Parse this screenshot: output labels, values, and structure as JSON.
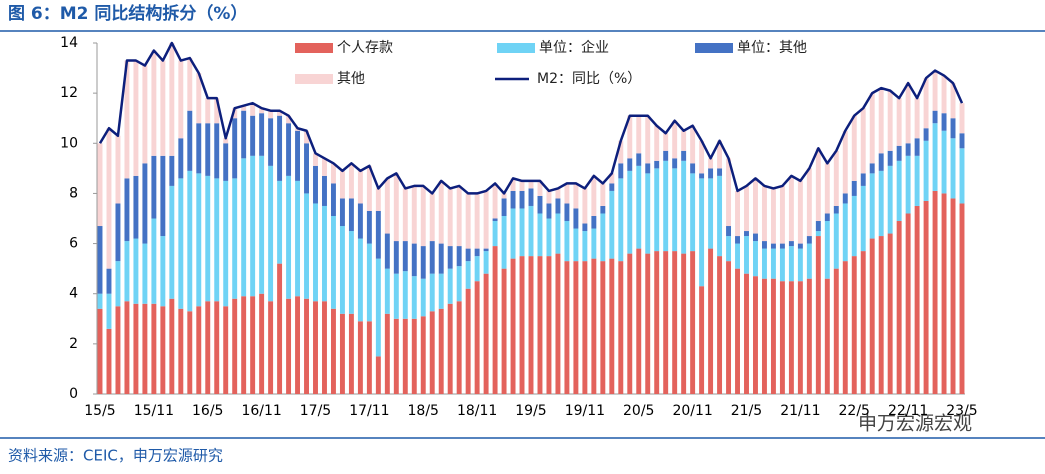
{
  "title": "图 6：M2 同比结构拆分（%）",
  "source": "资料来源：CEIC，申万宏源研究",
  "watermark": "申万宏源宏观",
  "chart_data": {
    "type": "stacked-bar-line",
    "categories": [
      "15/5",
      null,
      null,
      null,
      null,
      null,
      "15/11",
      null,
      null,
      null,
      null,
      null,
      "16/5",
      null,
      null,
      null,
      null,
      null,
      "16/11",
      null,
      null,
      null,
      null,
      null,
      "17/5",
      null,
      null,
      null,
      null,
      null,
      "17/11",
      null,
      null,
      null,
      null,
      null,
      "18/5",
      null,
      null,
      null,
      null,
      null,
      "18/11",
      null,
      null,
      null,
      null,
      null,
      "19/5",
      null,
      null,
      null,
      null,
      null,
      "19/11",
      null,
      null,
      null,
      null,
      null,
      "20/5",
      null,
      null,
      null,
      null,
      null,
      "20/11",
      null,
      null,
      null,
      null,
      null,
      "21/5",
      null,
      null,
      null,
      null,
      null,
      "21/11",
      null,
      null,
      null,
      null,
      null,
      "22/5",
      null,
      null,
      null,
      null,
      null,
      "22/11",
      null,
      null,
      null,
      null,
      null,
      "23/5"
    ],
    "ylim": [
      0,
      14
    ],
    "yticks": [
      0,
      2,
      4,
      6,
      8,
      10,
      12,
      14
    ],
    "grid": false,
    "legend": "top",
    "series": [
      {
        "name": "个人存款",
        "color": "#e3625c",
        "kind": "bar",
        "values": [
          3.4,
          2.6,
          3.5,
          3.7,
          3.6,
          3.6,
          3.6,
          3.5,
          3.8,
          3.4,
          3.3,
          3.5,
          3.7,
          3.7,
          3.5,
          3.8,
          3.9,
          3.9,
          4.0,
          3.7,
          5.2,
          3.8,
          3.9,
          3.8,
          3.7,
          3.7,
          3.4,
          3.2,
          3.2,
          2.9,
          2.9,
          1.5,
          3.2,
          3.0,
          3.0,
          3.0,
          3.1,
          3.3,
          3.4,
          3.6,
          3.7,
          4.2,
          4.5,
          4.8,
          5.9,
          5.0,
          5.4,
          5.5,
          5.5,
          5.5,
          5.5,
          5.6,
          5.3,
          5.3,
          5.3,
          5.4,
          5.3,
          5.4,
          5.3,
          5.6,
          5.8,
          5.6,
          5.7,
          5.7,
          5.7,
          5.6,
          5.7,
          4.3,
          5.8,
          5.5,
          5.3,
          5.0,
          4.8,
          4.7,
          4.6,
          4.6,
          4.5,
          4.5,
          4.5,
          4.6,
          6.3,
          4.6,
          5.0,
          5.3,
          5.5,
          5.7,
          6.2,
          6.3,
          6.4,
          6.9,
          7.2,
          7.5,
          7.7,
          8.1,
          8.0,
          7.8,
          7.6
        ]
      },
      {
        "name": "单位：企业",
        "color": "#6fd3f5",
        "kind": "bar",
        "values": [
          0.6,
          1.4,
          1.8,
          2.4,
          2.6,
          2.4,
          3.4,
          2.8,
          4.5,
          5.2,
          5.6,
          5.3,
          5.0,
          4.9,
          5.0,
          4.8,
          5.5,
          5.6,
          5.5,
          5.4,
          3.3,
          4.9,
          4.6,
          4.2,
          3.9,
          3.8,
          3.7,
          3.5,
          3.3,
          3.3,
          3.1,
          3.9,
          1.8,
          1.8,
          1.9,
          1.7,
          1.5,
          1.5,
          1.4,
          1.4,
          1.4,
          1.1,
          1.0,
          0.9,
          1.0,
          2.1,
          2.0,
          1.9,
          2.0,
          1.7,
          1.5,
          1.6,
          1.6,
          1.3,
          1.2,
          1.2,
          1.9,
          2.7,
          3.3,
          3.3,
          3.3,
          3.2,
          3.3,
          3.6,
          3.3,
          3.7,
          3.1,
          4.3,
          2.8,
          3.2,
          1.0,
          1.0,
          1.5,
          1.4,
          1.2,
          1.2,
          1.3,
          1.4,
          1.3,
          1.4,
          0.2,
          2.3,
          2.2,
          2.3,
          2.4,
          2.6,
          2.6,
          2.6,
          2.7,
          2.4,
          2.3,
          2.0,
          2.4,
          2.7,
          2.5,
          2.4,
          2.2
        ]
      },
      {
        "name": "单位：其他",
        "color": "#4472c4",
        "kind": "bar",
        "values": [
          2.7,
          1.0,
          2.3,
          2.5,
          2.5,
          3.2,
          2.5,
          3.2,
          1.2,
          1.6,
          2.4,
          2.0,
          2.1,
          2.2,
          1.5,
          2.4,
          1.9,
          1.6,
          1.7,
          1.9,
          2.6,
          2.1,
          2.0,
          2.0,
          1.5,
          1.2,
          1.3,
          1.1,
          1.3,
          1.4,
          1.3,
          1.9,
          1.4,
          1.3,
          1.2,
          1.3,
          1.3,
          1.3,
          1.2,
          0.9,
          0.8,
          0.5,
          0.3,
          0.1,
          0.1,
          0.7,
          0.7,
          0.7,
          0.7,
          0.7,
          0.6,
          0.6,
          0.7,
          0.8,
          0.3,
          0.5,
          0.3,
          0.3,
          0.6,
          0.5,
          0.5,
          0.4,
          0.3,
          0.4,
          0.4,
          0.4,
          0.4,
          0.2,
          0.4,
          0.3,
          0.4,
          0.3,
          0.2,
          0.3,
          0.3,
          0.2,
          0.2,
          0.2,
          0.2,
          0.3,
          0.4,
          0.3,
          0.3,
          0.4,
          0.6,
          0.5,
          0.4,
          0.7,
          0.6,
          0.6,
          0.5,
          0.7,
          0.5,
          0.5,
          0.7,
          0.8,
          0.6
        ]
      },
      {
        "name": "其他",
        "color": "#f8d4d4",
        "kind": "bar",
        "values": [
          3.3,
          5.6,
          2.7,
          4.7,
          4.6,
          3.9,
          4.2,
          3.8,
          4.5,
          3.1,
          2.1,
          2.0,
          1.0,
          1.0,
          0.2,
          0.4,
          0.2,
          0.5,
          0.2,
          0.3,
          0.2,
          0.3,
          0.1,
          0.5,
          0.5,
          0.7,
          0.8,
          1.1,
          1.4,
          1.3,
          1.8,
          0.9,
          2.2,
          2.7,
          2.1,
          2.3,
          2.4,
          1.9,
          2.5,
          2.3,
          2.4,
          2.2,
          2.2,
          2.3,
          1.4,
          0.2,
          0.5,
          0.4,
          0.3,
          0.6,
          0.5,
          0.4,
          0.8,
          1.0,
          1.4,
          1.6,
          0.9,
          0.4,
          0.9,
          1.7,
          1.5,
          1.9,
          1.4,
          0.7,
          1.5,
          0.8,
          1.5,
          1.3,
          0.4,
          1.1,
          2.7,
          1.8,
          1.8,
          2.2,
          2.2,
          2.2,
          2.3,
          2.6,
          2.5,
          2.7,
          2.9,
          2.0,
          2.2,
          2.5,
          2.6,
          2.6,
          2.8,
          2.6,
          2.4,
          1.9,
          2.4,
          1.6,
          2.0,
          1.6,
          1.5,
          1.4,
          1.2
        ]
      },
      {
        "name": "M2：同比（%）",
        "color": "#0d1f7c",
        "kind": "line",
        "values": [
          10.0,
          10.6,
          10.3,
          13.3,
          13.3,
          13.1,
          13.7,
          13.3,
          14.0,
          13.3,
          13.4,
          12.8,
          11.8,
          11.8,
          10.2,
          11.4,
          11.5,
          11.6,
          11.4,
          11.3,
          11.3,
          11.1,
          10.6,
          10.5,
          9.6,
          9.4,
          9.2,
          8.9,
          9.2,
          8.9,
          9.1,
          8.2,
          8.6,
          8.8,
          8.2,
          8.3,
          8.3,
          8.0,
          8.5,
          8.2,
          8.3,
          8.0,
          8.0,
          8.1,
          8.4,
          8.0,
          8.6,
          8.5,
          8.5,
          8.5,
          8.1,
          8.2,
          8.4,
          8.4,
          8.2,
          8.7,
          8.4,
          8.8,
          10.1,
          11.1,
          11.1,
          11.1,
          10.7,
          10.4,
          10.9,
          10.5,
          10.7,
          10.1,
          9.4,
          10.1,
          9.4,
          8.1,
          8.3,
          8.6,
          8.3,
          8.2,
          8.3,
          8.7,
          8.5,
          9.0,
          9.8,
          9.2,
          9.7,
          10.5,
          11.1,
          11.4,
          12.0,
          12.2,
          12.1,
          11.8,
          12.4,
          11.8,
          12.6,
          12.9,
          12.7,
          12.4,
          11.6
        ]
      }
    ]
  }
}
